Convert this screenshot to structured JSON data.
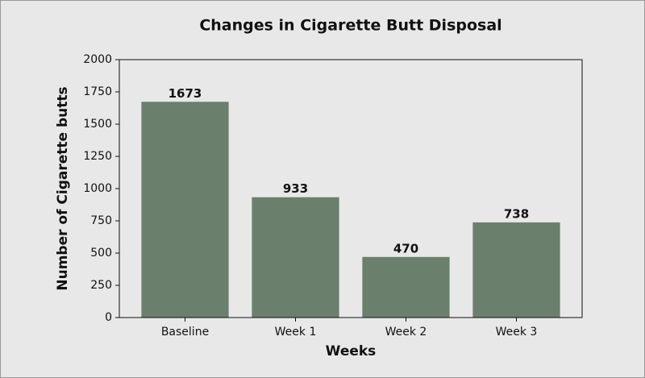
{
  "chart_data": {
    "type": "bar",
    "title": "Changes in Cigarette Butt Disposal",
    "x_label": "Weeks",
    "y_label": "Number of Cigarette butts",
    "categories": [
      "Baseline",
      "Week 1",
      "Week 2",
      "Week 3"
    ],
    "values": [
      1673,
      933,
      470,
      738
    ],
    "color": "#6b7f6d",
    "ylim": [
      0,
      2000
    ],
    "yticks": [
      0,
      250,
      500,
      750,
      1000,
      1250,
      1500,
      1750,
      2000
    ],
    "grid": false
  }
}
